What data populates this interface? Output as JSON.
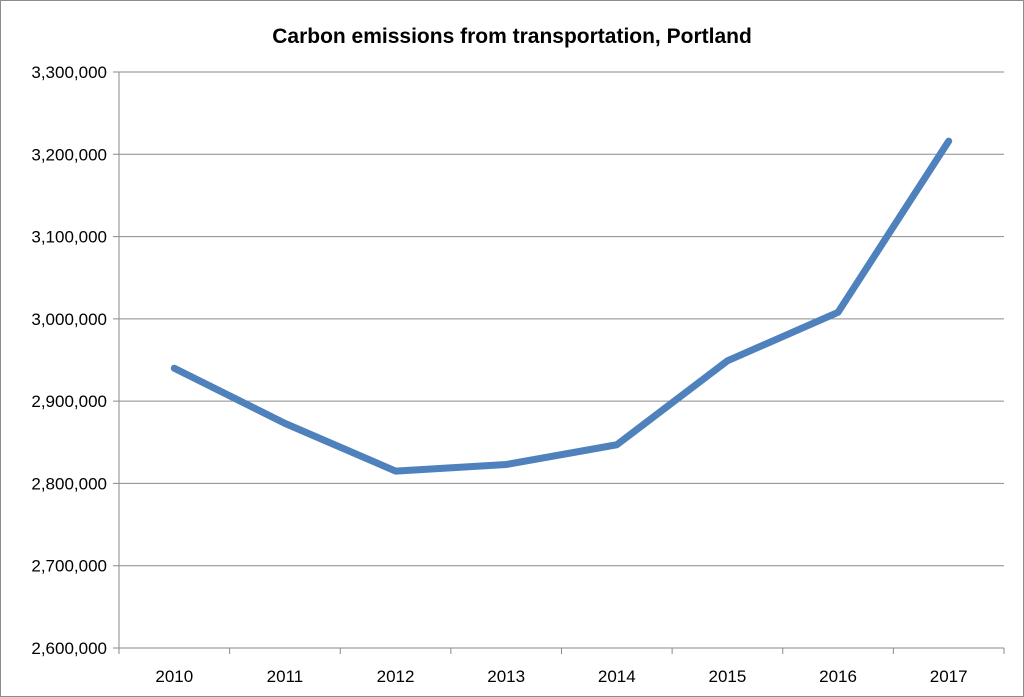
{
  "chart_data": {
    "type": "line",
    "title": "Carbon emissions from transportation, Portland",
    "xlabel": "",
    "ylabel": "",
    "categories": [
      "2010",
      "2011",
      "2012",
      "2013",
      "2014",
      "2015",
      "2016",
      "2017"
    ],
    "series": [
      {
        "values": [
          2940000,
          2873000,
          2815000,
          2823000,
          2847000,
          2949000,
          3008000,
          3216000
        ],
        "color": "#4f81bd"
      }
    ],
    "ylim": [
      2600000,
      3300000
    ],
    "yticks": [
      2600000,
      2700000,
      2800000,
      2900000,
      3000000,
      3100000,
      3200000,
      3300000
    ],
    "ytick_labels": [
      "2,600,000",
      "2,700,000",
      "2,800,000",
      "2,900,000",
      "3,000,000",
      "3,100,000",
      "3,200,000",
      "3,300,000"
    ],
    "grid": true,
    "legend": "none"
  }
}
